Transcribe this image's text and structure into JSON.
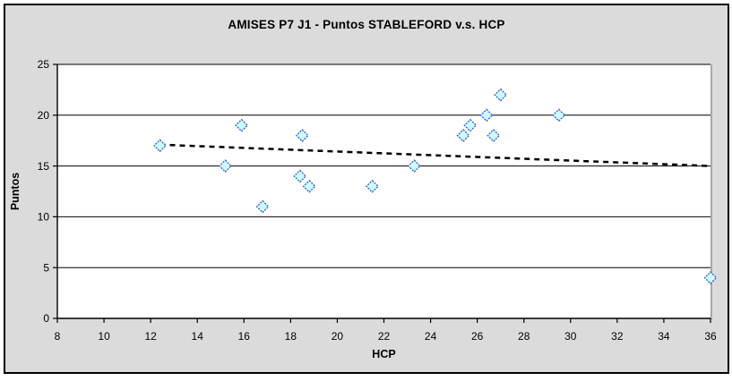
{
  "chart_data": {
    "type": "scatter",
    "title": "AMISES P7 J1 - Puntos STABLEFORD v.s. HCP",
    "xlabel": "HCP",
    "ylabel": "Puntos",
    "xlim": [
      8,
      36
    ],
    "ylim": [
      0,
      25
    ],
    "xticks": [
      8,
      10,
      12,
      14,
      16,
      18,
      20,
      22,
      24,
      26,
      28,
      30,
      32,
      34,
      36
    ],
    "yticks": [
      0,
      5,
      10,
      15,
      20,
      25
    ],
    "grid": "horizontal",
    "legend_position": "none",
    "points": [
      {
        "x": 12.4,
        "y": 17
      },
      {
        "x": 15.2,
        "y": 15
      },
      {
        "x": 15.9,
        "y": 19
      },
      {
        "x": 16.8,
        "y": 11
      },
      {
        "x": 18.4,
        "y": 14
      },
      {
        "x": 18.5,
        "y": 18
      },
      {
        "x": 18.8,
        "y": 13
      },
      {
        "x": 21.5,
        "y": 13
      },
      {
        "x": 23.3,
        "y": 15
      },
      {
        "x": 25.4,
        "y": 18
      },
      {
        "x": 25.7,
        "y": 19
      },
      {
        "x": 26.4,
        "y": 20
      },
      {
        "x": 26.7,
        "y": 18
      },
      {
        "x": 27.0,
        "y": 22
      },
      {
        "x": 29.5,
        "y": 20
      },
      {
        "x": 36.0,
        "y": 4
      }
    ],
    "trendline": {
      "type": "linear",
      "style": "dashed",
      "x1": 12.4,
      "y1": 17.1,
      "x2": 36.0,
      "y2": 15.0
    },
    "colors": {
      "chart_background": "#DBDBDB",
      "plot_background": "#FFFFFF",
      "gridline": "#000000",
      "axis": "#000000",
      "marker_fill": "#CCFFFF",
      "marker_border": "#3355CC",
      "trendline": "#000000",
      "plot_right_edge": "#8C8C8C"
    }
  }
}
